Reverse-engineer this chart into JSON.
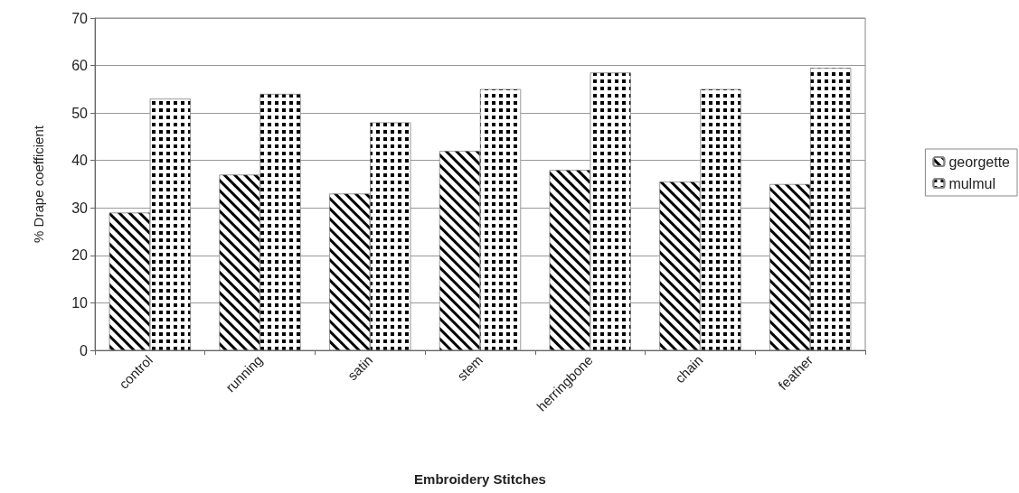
{
  "chart_data": {
    "type": "bar",
    "xlabel": "Embroidery Stitches",
    "ylabel": "% Drape coefficient",
    "categories": [
      "control",
      "running",
      "satin",
      "stem",
      "herringbone",
      "chain",
      "feather"
    ],
    "series": [
      {
        "name": "georgette",
        "color": "#ffffff",
        "values": [
          29,
          37,
          33,
          42,
          38,
          35.5,
          35
        ]
      },
      {
        "name": "mulmul",
        "color": "#ffffff",
        "values": [
          53,
          54,
          48,
          55,
          58.5,
          55,
          59.5
        ]
      }
    ],
    "ylim": [
      0,
      70
    ],
    "yticks": [
      0,
      10,
      20,
      30,
      40,
      50,
      60,
      70
    ],
    "grid": "y",
    "legend": "right"
  }
}
